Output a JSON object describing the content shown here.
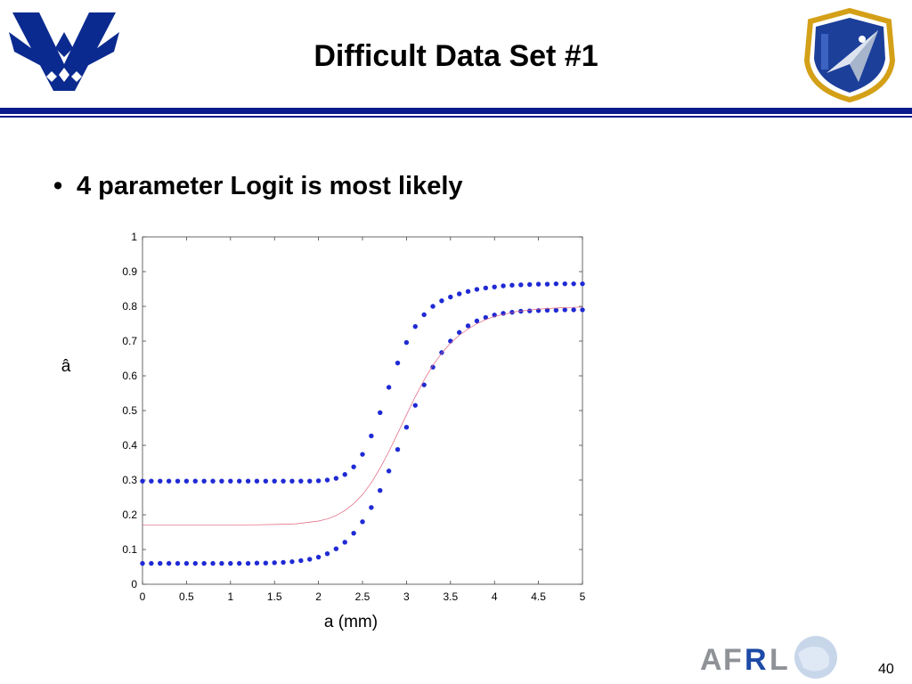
{
  "slide": {
    "title": "Difficult Data Set #1",
    "bullet": "4 parameter Logit is most likely",
    "page_number": "40",
    "colors": {
      "accent": "#0a1a8c",
      "series": "#1f2ad4",
      "fit": "#e0607a"
    },
    "icons": [
      "air-force-wings-icon",
      "afrl-shield-icon",
      "afrl-logo-icon"
    ]
  },
  "chart_data": {
    "type": "scatter",
    "xlabel": "a (mm)",
    "ylabel": "â",
    "xlim": [
      0,
      5
    ],
    "ylim": [
      0,
      1
    ],
    "xticks": [
      "0",
      "0.5",
      "1",
      "1.5",
      "2",
      "2.5",
      "3",
      "3.5",
      "4",
      "4.5",
      "5"
    ],
    "yticks": [
      "0",
      "0.1",
      "0.2",
      "0.3",
      "0.4",
      "0.5",
      "0.6",
      "0.7",
      "0.8",
      "0.9",
      "1"
    ],
    "grid": false,
    "series": [
      {
        "kind": "points",
        "x": [
          0,
          0.1,
          0.2,
          0.3,
          0.4,
          0.5,
          0.6,
          0.7,
          0.8,
          0.9,
          1,
          1.1,
          1.2,
          1.3,
          1.4,
          1.5,
          1.6,
          1.7,
          1.8,
          1.9,
          2,
          2.1,
          2.2,
          2.3,
          2.4,
          2.5,
          2.6,
          2.7,
          2.8,
          2.9,
          3,
          3.1,
          3.2,
          3.3,
          3.4,
          3.5,
          3.6,
          3.7,
          3.8,
          3.9,
          4,
          4.1,
          4.2,
          4.3,
          4.4,
          4.5,
          4.6,
          4.7,
          4.8,
          4.9,
          5
        ],
        "y": [
          0.297,
          0.297,
          0.297,
          0.297,
          0.297,
          0.297,
          0.297,
          0.297,
          0.297,
          0.297,
          0.297,
          0.297,
          0.297,
          0.297,
          0.297,
          0.297,
          0.297,
          0.297,
          0.297,
          0.297,
          0.298,
          0.3,
          0.305,
          0.316,
          0.338,
          0.374,
          0.427,
          0.494,
          0.567,
          0.637,
          0.696,
          0.742,
          0.776,
          0.8,
          0.816,
          0.827,
          0.836,
          0.843,
          0.849,
          0.853,
          0.856,
          0.859,
          0.861,
          0.862,
          0.863,
          0.864,
          0.864,
          0.865,
          0.865,
          0.865,
          0.865
        ]
      },
      {
        "kind": "points",
        "x": [
          0,
          0.1,
          0.2,
          0.3,
          0.4,
          0.5,
          0.6,
          0.7,
          0.8,
          0.9,
          1,
          1.1,
          1.2,
          1.3,
          1.4,
          1.5,
          1.6,
          1.7,
          1.8,
          1.9,
          2,
          2.1,
          2.2,
          2.3,
          2.4,
          2.5,
          2.6,
          2.7,
          2.8,
          2.9,
          3,
          3.1,
          3.2,
          3.3,
          3.4,
          3.5,
          3.6,
          3.7,
          3.8,
          3.9,
          4,
          4.1,
          4.2,
          4.3,
          4.4,
          4.5,
          4.6,
          4.7,
          4.8,
          4.9,
          5
        ],
        "y": [
          0.06,
          0.06,
          0.06,
          0.06,
          0.06,
          0.06,
          0.06,
          0.06,
          0.06,
          0.06,
          0.06,
          0.06,
          0.06,
          0.061,
          0.061,
          0.062,
          0.063,
          0.065,
          0.068,
          0.072,
          0.078,
          0.088,
          0.102,
          0.121,
          0.147,
          0.18,
          0.221,
          0.27,
          0.326,
          0.388,
          0.452,
          0.515,
          0.574,
          0.625,
          0.667,
          0.7,
          0.725,
          0.744,
          0.758,
          0.768,
          0.775,
          0.78,
          0.783,
          0.786,
          0.787,
          0.788,
          0.789,
          0.789,
          0.79,
          0.79,
          0.79
        ]
      },
      {
        "kind": "line",
        "x": [
          0,
          0.25,
          0.5,
          0.75,
          1,
          1.25,
          1.5,
          1.75,
          2,
          2.1,
          2.2,
          2.3,
          2.4,
          2.5,
          2.6,
          2.7,
          2.8,
          2.9,
          3,
          3.1,
          3.2,
          3.3,
          3.4,
          3.5,
          3.6,
          3.7,
          3.8,
          3.9,
          4,
          4.25,
          4.5,
          4.75,
          5
        ],
        "y": [
          0.17,
          0.17,
          0.17,
          0.17,
          0.17,
          0.171,
          0.172,
          0.174,
          0.182,
          0.188,
          0.198,
          0.212,
          0.232,
          0.258,
          0.292,
          0.334,
          0.382,
          0.434,
          0.488,
          0.54,
          0.588,
          0.63,
          0.665,
          0.694,
          0.717,
          0.735,
          0.75,
          0.762,
          0.771,
          0.785,
          0.792,
          0.796,
          0.798
        ]
      }
    ]
  }
}
